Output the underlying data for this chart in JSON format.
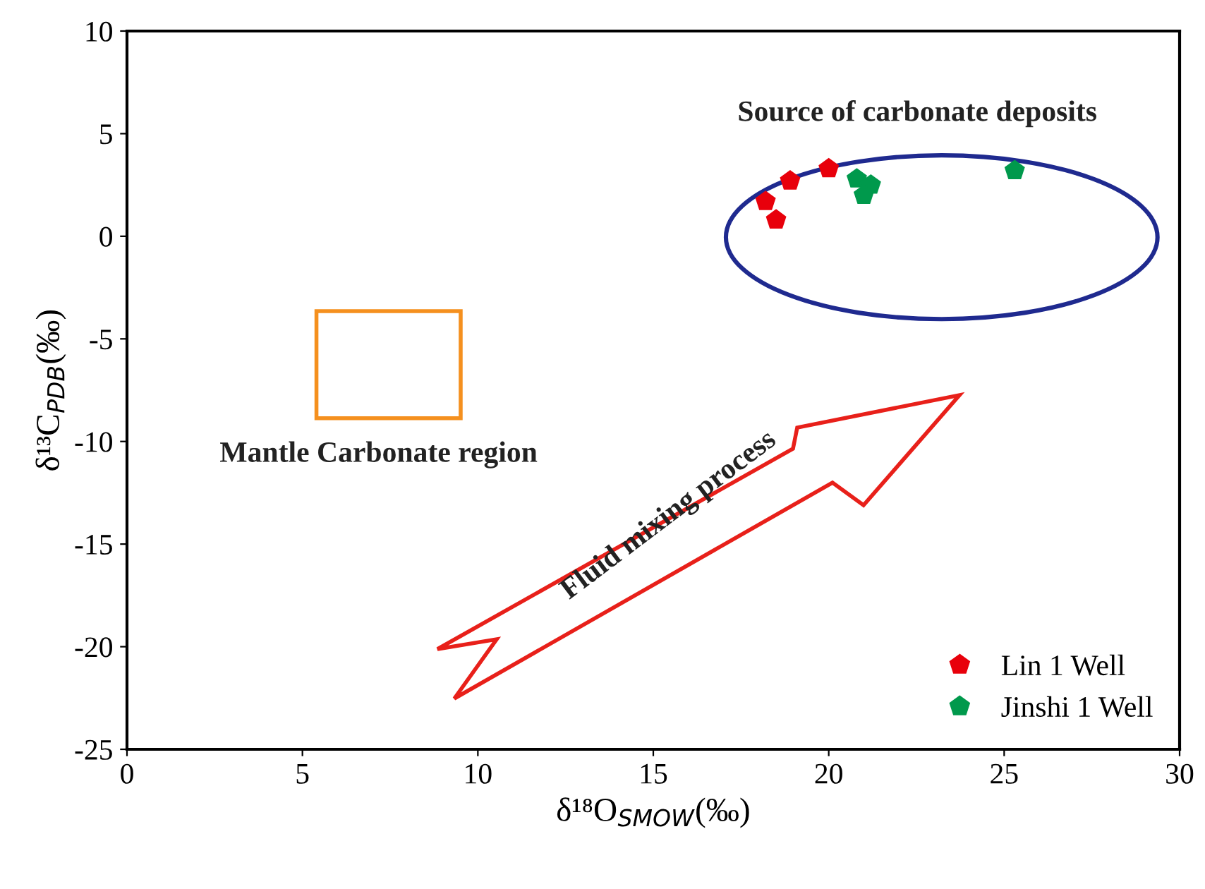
{
  "chart_data": {
    "type": "scatter",
    "xlabel": "δ¹⁸O$_{SMOW}$(‰)",
    "ylabel": "δ¹³C$_{PDB}$(‰)",
    "series": [
      {
        "name": "Lin 1 Well",
        "color": "#e8000b",
        "x": [
          20.0,
          18.9,
          18.2,
          18.5
        ],
        "values": [
          3.3,
          2.7,
          1.7,
          0.8
        ]
      },
      {
        "name": "Jinshi 1 Well",
        "color": "#00994c",
        "x": [
          20.8,
          21.2,
          21.0,
          25.3
        ],
        "values": [
          2.8,
          2.5,
          2.0,
          3.2
        ]
      }
    ],
    "legend": "bottom right",
    "grid": false,
    "xlim": [
      0,
      30
    ],
    "xticks": [
      0,
      5,
      10,
      15,
      20,
      25,
      30
    ],
    "ylim": [
      -25,
      10
    ],
    "yticks": [
      -25,
      -20,
      -15,
      -10,
      -5,
      0,
      5,
      10
    ],
    "annotations": [
      "Source of carbonate deposits",
      "Mantle Carbonate region",
      "Fluid mixing process"
    ]
  }
}
